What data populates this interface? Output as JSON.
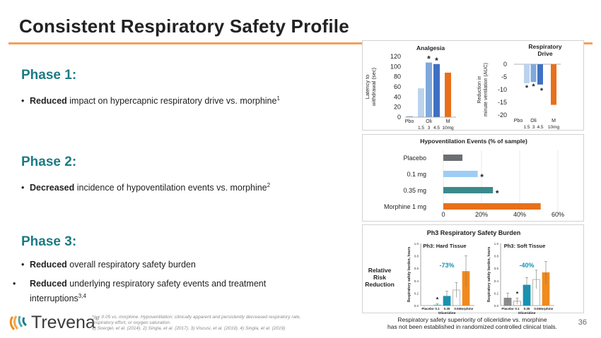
{
  "slide": {
    "title": "Consistent Respiratory Safety Profile",
    "page_number": "36",
    "accent_color": "#f5a05a",
    "phase_color": "#1b7b84"
  },
  "phases": [
    {
      "heading": "Phase 1:",
      "bullets": [
        {
          "bold": "Reduced",
          "text": " impact on hypercapnic respiratory drive vs. morphine",
          "sup": "1"
        }
      ]
    },
    {
      "heading": "Phase 2:",
      "bullets": [
        {
          "bold": "Decreased",
          "text": " incidence of hypoventilation events vs. morphine",
          "sup": "2"
        }
      ]
    },
    {
      "heading": "Phase 3:",
      "bullets": [
        {
          "bold": "Reduced",
          "text": " overall respiratory safety burden",
          "sup": ""
        },
        {
          "bold": "Reduced",
          "text": " underlying respiratory safety events and treatment interruptions",
          "sup": "3,4"
        }
      ]
    }
  ],
  "footnote": {
    "line1": "*p < 0.05 vs. morphine. Hypoventilation: clinically apparent and persistently decreased respiratory rate,",
    "line2": "respiratory effort, or oxygen saturation.",
    "line3": "1) Soergel, et al. (2014). 2) Singla, et al. (2017). 3) Viscusi, et al. (2019). 4) Singla, et al. (2019)"
  },
  "logo": {
    "text": "Trevena",
    "reg": "®"
  },
  "caption": {
    "line1": "Respiratory safety superiority of oliceridine vs. morphine",
    "line2": "has not been established in randomized controlled clinical trials."
  },
  "chart_data": [
    {
      "type": "bar",
      "title": "Analgesia",
      "ylabel": "Latency to withdrawal (sec)",
      "ylim": [
        0,
        120
      ],
      "yticks": [
        "0",
        "20",
        "40",
        "60",
        "80",
        "100",
        "120"
      ],
      "group_labels": [
        "Pbo",
        "Oli",
        "M"
      ],
      "sub_labels": [
        "1.5",
        "3",
        "4.5",
        "10mg"
      ],
      "categories": [
        "Pbo",
        "Oli 1.5",
        "Oli 3",
        "Oli 4.5",
        "M 10mg"
      ],
      "values": [
        2,
        57,
        108,
        105,
        88
      ],
      "colors": [
        "#9fb8d8",
        "#bcd3ee",
        "#7fa9dc",
        "#3f70c3",
        "#e8701a"
      ],
      "significance": [
        "",
        "",
        "*",
        "*",
        ""
      ]
    },
    {
      "type": "bar",
      "title": "Respiratory Drive",
      "ylabel": "Reduction in minute ventilation (AUC)",
      "ylim": [
        -20,
        0
      ],
      "yticks": [
        "0",
        "-5",
        "-10",
        "-15",
        "-20"
      ],
      "group_labels": [
        "Pbo",
        "Oli",
        "M"
      ],
      "sub_labels": [
        "1.5",
        "3",
        "4.5",
        "10mg"
      ],
      "categories": [
        "Pbo",
        "Oli 1.5",
        "Oli 3",
        "Oli 4.5",
        "M 10mg"
      ],
      "values": [
        0,
        -7.5,
        -7,
        -8,
        -16
      ],
      "colors": [
        "#9fb8d8",
        "#bcd3ee",
        "#7fa9dc",
        "#3f70c3",
        "#e8701a"
      ],
      "significance": [
        "",
        "*",
        "*",
        "*",
        ""
      ]
    },
    {
      "type": "bar",
      "orientation": "horizontal",
      "title": "Hypoventilation Events (% of sample)",
      "categories": [
        "Placebo",
        "0.1 mg",
        "0.35 mg",
        "Morphine 1 mg"
      ],
      "values": [
        10,
        18,
        26,
        51
      ],
      "xlim": [
        0,
        60
      ],
      "xticks": [
        "0",
        "20%",
        "40%",
        "60%"
      ],
      "colors": [
        "#6d6e71",
        "#9dcdf5",
        "#3a8a8a",
        "#e8701a"
      ],
      "significance": [
        "",
        "*",
        "*",
        ""
      ]
    },
    {
      "type": "bar",
      "title": "Ph3: Hard Tissue",
      "panel_title": "Ph3 Respiratory Safety Burden",
      "side_label": "Relative Risk Reduction",
      "ylabel": "Respiratory safety burden, hours",
      "xlabel": "Oliceridine",
      "ylim": [
        0,
        1.0
      ],
      "yticks": [
        "0.0",
        "0.2",
        "0.4",
        "0.6",
        "0.8",
        "1.0"
      ],
      "categories": [
        "Placebo",
        "0.1",
        "0.35",
        "0.5",
        "Morphine"
      ],
      "values": [
        0.0,
        0.01,
        0.15,
        0.25,
        0.55
      ],
      "errors": [
        0.0,
        0.02,
        0.08,
        0.12,
        0.25
      ],
      "colors": [
        "#ffffff",
        "#a7d6e8",
        "#1493b3",
        "#ffffff",
        "#f08a1c"
      ],
      "outline": [
        "#9aa",
        "#7bb",
        "#1493b3",
        "#999",
        "#f08a1c"
      ],
      "significance": [
        "",
        "*",
        "",
        "",
        ""
      ],
      "annotation": "-73%"
    },
    {
      "type": "bar",
      "title": "Ph3: Soft Tissue",
      "ylabel": "Respiratory safety burden, hours",
      "xlabel": "Oliceridine",
      "ylim": [
        0,
        1.0
      ],
      "yticks": [
        "0.0",
        "0.2",
        "0.4",
        "0.6",
        "0.8",
        "1.0"
      ],
      "categories": [
        "Placebo",
        "0.1",
        "0.35",
        "0.5",
        "Morphine"
      ],
      "values": [
        0.12,
        0.07,
        0.33,
        0.42,
        0.53
      ],
      "errors": [
        0.08,
        0.05,
        0.12,
        0.15,
        0.18
      ],
      "colors": [
        "#8d8d8d",
        "#ffffff",
        "#1493b3",
        "#ffffff",
        "#f08a1c"
      ],
      "outline": [
        "#777",
        "#888",
        "#1493b3",
        "#999",
        "#f08a1c"
      ],
      "significance": [
        "",
        "*",
        "",
        "",
        ""
      ],
      "annotation": "-40%"
    }
  ]
}
